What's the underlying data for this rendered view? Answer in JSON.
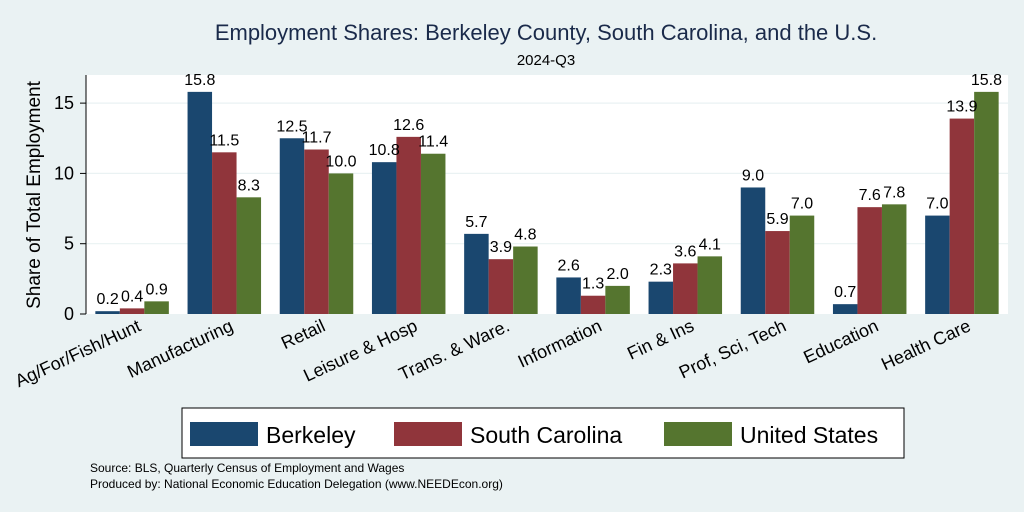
{
  "colors": {
    "background": "#eaf2f3",
    "plot_background": "#ffffff",
    "berkeley": "#1a476f",
    "south_carolina": "#90353b",
    "united_states": "#55752f",
    "grid": "#eaf2f3"
  },
  "chart_data": {
    "type": "bar",
    "title": "Employment Shares: Berkeley County, South Carolina, and the U.S.",
    "subtitle": "2024-Q3",
    "xlabel": "",
    "ylabel": "Share of Total Employment",
    "ylim": [
      0,
      17
    ],
    "yticks": [
      0,
      5,
      10,
      15
    ],
    "grid": true,
    "legend_position": "bottom",
    "categories": [
      "Ag/For/Fish/Hunt",
      "Manufacturing",
      "Retail",
      "Leisure & Hosp",
      "Trans. & Ware.",
      "Information",
      "Fin & Ins",
      "Prof, Sci, Tech",
      "Education",
      "Health Care"
    ],
    "series": [
      {
        "name": "Berkeley",
        "values": [
          0.2,
          15.8,
          12.5,
          10.8,
          5.7,
          2.6,
          2.3,
          9.0,
          0.7,
          7.0
        ],
        "labels": [
          "0.2",
          "15.8",
          "12.5",
          "10.8",
          "5.7",
          "2.6",
          "2.3",
          "9.0",
          "0.7",
          "7.0"
        ]
      },
      {
        "name": "South Carolina",
        "values": [
          0.4,
          11.5,
          11.7,
          12.6,
          3.9,
          1.3,
          3.6,
          5.9,
          7.6,
          13.9
        ],
        "labels": [
          "0.4",
          "11.5",
          "11.7",
          "12.6",
          "3.9",
          "1.3",
          "3.6",
          "5.9",
          "7.6",
          "13.9"
        ]
      },
      {
        "name": "United States",
        "values": [
          0.9,
          8.3,
          10.0,
          11.4,
          4.8,
          2.0,
          4.1,
          7.0,
          7.8,
          15.8
        ],
        "labels": [
          "0.9",
          "8.3",
          "10.0",
          "11.4",
          "4.8",
          "2.0",
          "4.1",
          "7.0",
          "7.8",
          "15.8"
        ]
      }
    ],
    "notes": [
      "Source: BLS, Quarterly Census of Employment and Wages",
      "Produced by: National Economic Education Delegation (www.NEEDEcon.org)"
    ]
  }
}
